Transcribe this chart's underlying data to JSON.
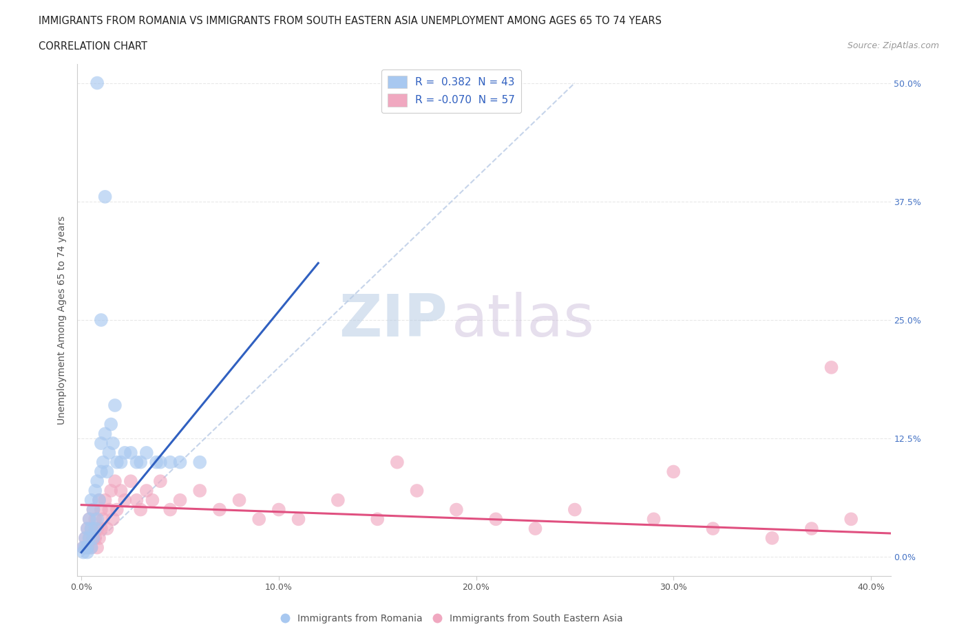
{
  "title_line1": "IMMIGRANTS FROM ROMANIA VS IMMIGRANTS FROM SOUTH EASTERN ASIA UNEMPLOYMENT AMONG AGES 65 TO 74 YEARS",
  "title_line2": "CORRELATION CHART",
  "source_text": "Source: ZipAtlas.com",
  "ylabel": "Unemployment Among Ages 65 to 74 years",
  "xlim": [
    -0.002,
    0.41
  ],
  "ylim": [
    -0.02,
    0.52
  ],
  "xticks": [
    0.0,
    0.1,
    0.2,
    0.3,
    0.4
  ],
  "xtick_labels": [
    "0.0%",
    "10.0%",
    "20.0%",
    "30.0%",
    "40.0%"
  ],
  "yticks": [
    0.0,
    0.125,
    0.25,
    0.375,
    0.5
  ],
  "ytick_labels_right": [
    "0.0%",
    "12.5%",
    "25.0%",
    "37.5%",
    "50.0%"
  ],
  "color_romania": "#a8c8f0",
  "color_sea": "#f0a8c0",
  "color_romania_line": "#3060c0",
  "color_sea_line": "#e05080",
  "color_diag_line": "#c0d0e8",
  "watermark_zip": "ZIP",
  "watermark_atlas": "atlas",
  "watermark_color_zip": "#c8d8ec",
  "watermark_color_atlas": "#d0c8e0",
  "legend_label1": "R =  0.382  N = 43",
  "legend_label2": "R = -0.070  N = 57",
  "legend_color": "#3060c0",
  "background_color": "#ffffff",
  "grid_color": "#e8e8e8",
  "romania_x": [
    0.001,
    0.001,
    0.002,
    0.002,
    0.003,
    0.003,
    0.003,
    0.004,
    0.004,
    0.005,
    0.005,
    0.005,
    0.006,
    0.006,
    0.007,
    0.007,
    0.008,
    0.008,
    0.009,
    0.01,
    0.01,
    0.011,
    0.012,
    0.013,
    0.014,
    0.015,
    0.016,
    0.017,
    0.018,
    0.02,
    0.022,
    0.025,
    0.028,
    0.03,
    0.033,
    0.038,
    0.04,
    0.045,
    0.05,
    0.06,
    0.01,
    0.012,
    0.008
  ],
  "romania_y": [
    0.005,
    0.01,
    0.01,
    0.02,
    0.01,
    0.03,
    0.005,
    0.02,
    0.04,
    0.01,
    0.03,
    0.06,
    0.02,
    0.05,
    0.03,
    0.07,
    0.04,
    0.08,
    0.06,
    0.09,
    0.12,
    0.1,
    0.13,
    0.09,
    0.11,
    0.14,
    0.12,
    0.16,
    0.1,
    0.1,
    0.11,
    0.11,
    0.1,
    0.1,
    0.11,
    0.1,
    0.1,
    0.1,
    0.1,
    0.1,
    0.25,
    0.38,
    0.5
  ],
  "sea_x": [
    0.001,
    0.002,
    0.003,
    0.003,
    0.004,
    0.004,
    0.005,
    0.005,
    0.006,
    0.006,
    0.007,
    0.007,
    0.008,
    0.008,
    0.009,
    0.009,
    0.01,
    0.01,
    0.011,
    0.012,
    0.013,
    0.014,
    0.015,
    0.016,
    0.017,
    0.018,
    0.02,
    0.022,
    0.025,
    0.028,
    0.03,
    0.033,
    0.036,
    0.04,
    0.045,
    0.05,
    0.06,
    0.07,
    0.08,
    0.09,
    0.1,
    0.11,
    0.13,
    0.15,
    0.17,
    0.19,
    0.21,
    0.23,
    0.25,
    0.29,
    0.32,
    0.35,
    0.37,
    0.39,
    0.16,
    0.3,
    0.38
  ],
  "sea_y": [
    0.01,
    0.02,
    0.01,
    0.03,
    0.02,
    0.04,
    0.01,
    0.03,
    0.02,
    0.05,
    0.02,
    0.04,
    0.01,
    0.03,
    0.02,
    0.06,
    0.03,
    0.05,
    0.04,
    0.06,
    0.03,
    0.05,
    0.07,
    0.04,
    0.08,
    0.05,
    0.07,
    0.06,
    0.08,
    0.06,
    0.05,
    0.07,
    0.06,
    0.08,
    0.05,
    0.06,
    0.07,
    0.05,
    0.06,
    0.04,
    0.05,
    0.04,
    0.06,
    0.04,
    0.07,
    0.05,
    0.04,
    0.03,
    0.05,
    0.04,
    0.03,
    0.02,
    0.03,
    0.04,
    0.1,
    0.09,
    0.2
  ]
}
